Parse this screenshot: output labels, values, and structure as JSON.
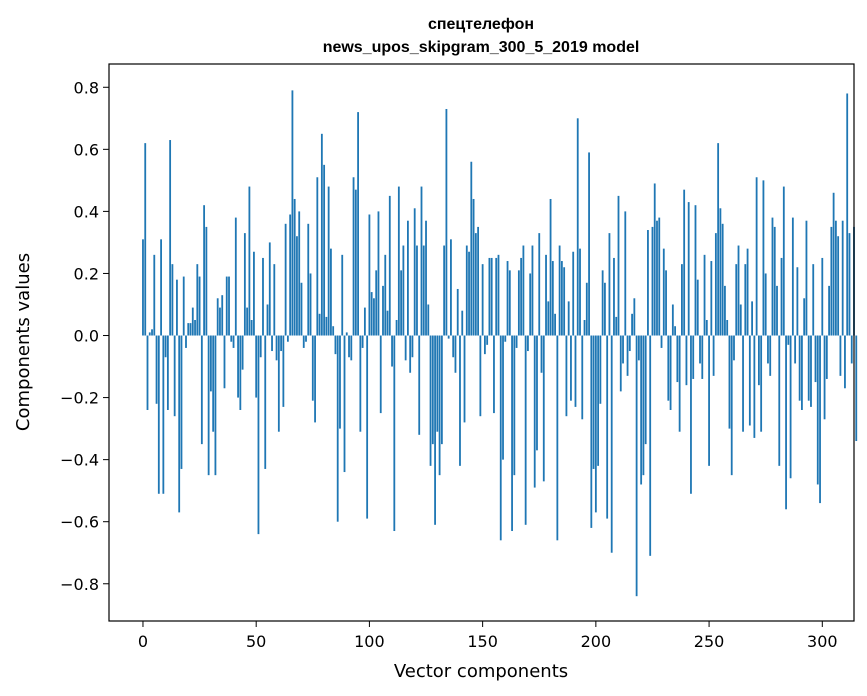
{
  "chart_data": {
    "type": "bar",
    "title_lines": [
      "спецтелефон",
      "news_upos_skipgram_300_5_2019 model"
    ],
    "xlabel": "Vector components",
    "ylabel": "Components values",
    "xlim": [
      -15,
      314
    ],
    "ylim": [
      -0.92,
      0.875
    ],
    "xticks": [
      0,
      50,
      100,
      150,
      200,
      250,
      300
    ],
    "yticks": [
      0.8,
      0.6,
      0.4,
      0.2,
      0.0,
      -0.2,
      -0.4,
      -0.6,
      -0.8
    ],
    "ytick_labels": [
      "0.8",
      "0.6",
      "0.4",
      "0.2",
      "0.0",
      "−0.2",
      "−0.4",
      "−0.6",
      "−0.8"
    ],
    "grid": false,
    "bar_color": "#1f77b4",
    "values": [
      0.31,
      0.62,
      -0.24,
      0.01,
      0.02,
      0.26,
      -0.22,
      -0.51,
      0.31,
      -0.51,
      -0.07,
      -0.24,
      0.63,
      0.23,
      -0.26,
      0.18,
      -0.57,
      -0.43,
      0.19,
      -0.04,
      0.04,
      0.04,
      0.09,
      0.05,
      0.23,
      0.19,
      -0.35,
      0.42,
      0.35,
      -0.45,
      -0.18,
      -0.31,
      -0.45,
      0.12,
      0.09,
      0.13,
      -0.17,
      0.19,
      0.19,
      -0.02,
      -0.04,
      0.38,
      -0.2,
      -0.24,
      -0.11,
      0.33,
      0.09,
      0.48,
      0.05,
      0.27,
      -0.2,
      -0.64,
      -0.07,
      0.25,
      -0.43,
      0.1,
      0.3,
      -0.05,
      0.23,
      -0.08,
      -0.31,
      -0.05,
      -0.23,
      0.36,
      -0.02,
      0.39,
      0.79,
      0.44,
      0.32,
      0.4,
      0.17,
      -0.04,
      -0.02,
      0.36,
      0.2,
      -0.21,
      -0.28,
      0.51,
      0.07,
      0.65,
      0.55,
      0.06,
      0.48,
      0.28,
      0.03,
      -0.06,
      -0.6,
      -0.3,
      0.26,
      -0.44,
      0.01,
      -0.07,
      -0.08,
      0.51,
      0.47,
      0.72,
      -0.31,
      -0.04,
      0.09,
      -0.59,
      0.39,
      0.14,
      0.12,
      0.21,
      0.4,
      -0.25,
      0.16,
      0.26,
      0.08,
      0.45,
      -0.1,
      -0.63,
      0.05,
      0.48,
      0.21,
      0.29,
      -0.08,
      0.37,
      -0.12,
      -0.07,
      0.41,
      0.29,
      -0.32,
      0.48,
      0.29,
      0.37,
      0.1,
      -0.42,
      -0.35,
      -0.61,
      -0.31,
      -0.45,
      -0.35,
      0.29,
      0.73,
      -0.01,
      0.31,
      -0.07,
      -0.12,
      0.15,
      -0.42,
      0.08,
      -0.28,
      0.29,
      0.27,
      0.56,
      0.44,
      0.33,
      0.35,
      -0.26,
      0.23,
      -0.06,
      -0.03,
      0.25,
      0.25,
      -0.25,
      0.25,
      0.26,
      -0.66,
      -0.4,
      -0.02,
      0.24,
      0.21,
      -0.63,
      -0.45,
      -0.04,
      0.21,
      0.25,
      0.29,
      -0.61,
      -0.05,
      0.2,
      0.29,
      -0.49,
      -0.37,
      0.33,
      -0.12,
      -0.47,
      0.26,
      0.11,
      0.44,
      0.24,
      0.07,
      -0.66,
      0.29,
      0.24,
      0.22,
      -0.26,
      0.11,
      -0.21,
      0.27,
      -0.23,
      0.7,
      0.28,
      -0.27,
      0.05,
      0.17,
      0.59,
      -0.62,
      -0.43,
      -0.57,
      -0.42,
      -0.22,
      0.21,
      0.17,
      -0.59,
      0.33,
      -0.7,
      0.25,
      0.06,
      0.45,
      -0.18,
      -0.09,
      0.4,
      -0.13,
      -0.05,
      0.07,
      0.12,
      -0.84,
      -0.08,
      -0.48,
      -0.45,
      -0.35,
      0.34,
      -0.71,
      0.35,
      0.49,
      0.37,
      0.38,
      -0.04,
      0.28,
      0.21,
      -0.21,
      -0.24,
      0.1,
      0.03,
      -0.15,
      -0.31,
      0.23,
      0.47,
      -0.16,
      0.43,
      -0.51,
      -0.14,
      0.42,
      0.18,
      -0.09,
      -0.14,
      0.26,
      0.05,
      -0.42,
      0.24,
      -0.13,
      0.33,
      0.62,
      0.41,
      0.36,
      0.16,
      0.05,
      -0.3,
      -0.45,
      -0.08,
      0.23,
      0.29,
      0.1,
      -0.31,
      0.23,
      0.28,
      -0.29,
      0.11,
      -0.33,
      0.51,
      -0.16,
      -0.31,
      0.5,
      0.2,
      -0.09,
      -0.13,
      0.38,
      0.35,
      0.16,
      -0.42,
      0.25,
      0.48,
      -0.56,
      -0.03,
      -0.46,
      0.38,
      -0.09,
      0.22,
      -0.21,
      -0.24,
      0.12,
      0.37,
      -0.21,
      -0.23,
      0.23,
      -0.15,
      -0.48,
      -0.54,
      0.25,
      -0.27,
      -0.14,
      0.16,
      0.35,
      0.46,
      0.37,
      0.32,
      -0.13,
      0.37,
      -0.17,
      0.78,
      0.33,
      -0.09,
      0.35,
      -0.34
    ]
  }
}
